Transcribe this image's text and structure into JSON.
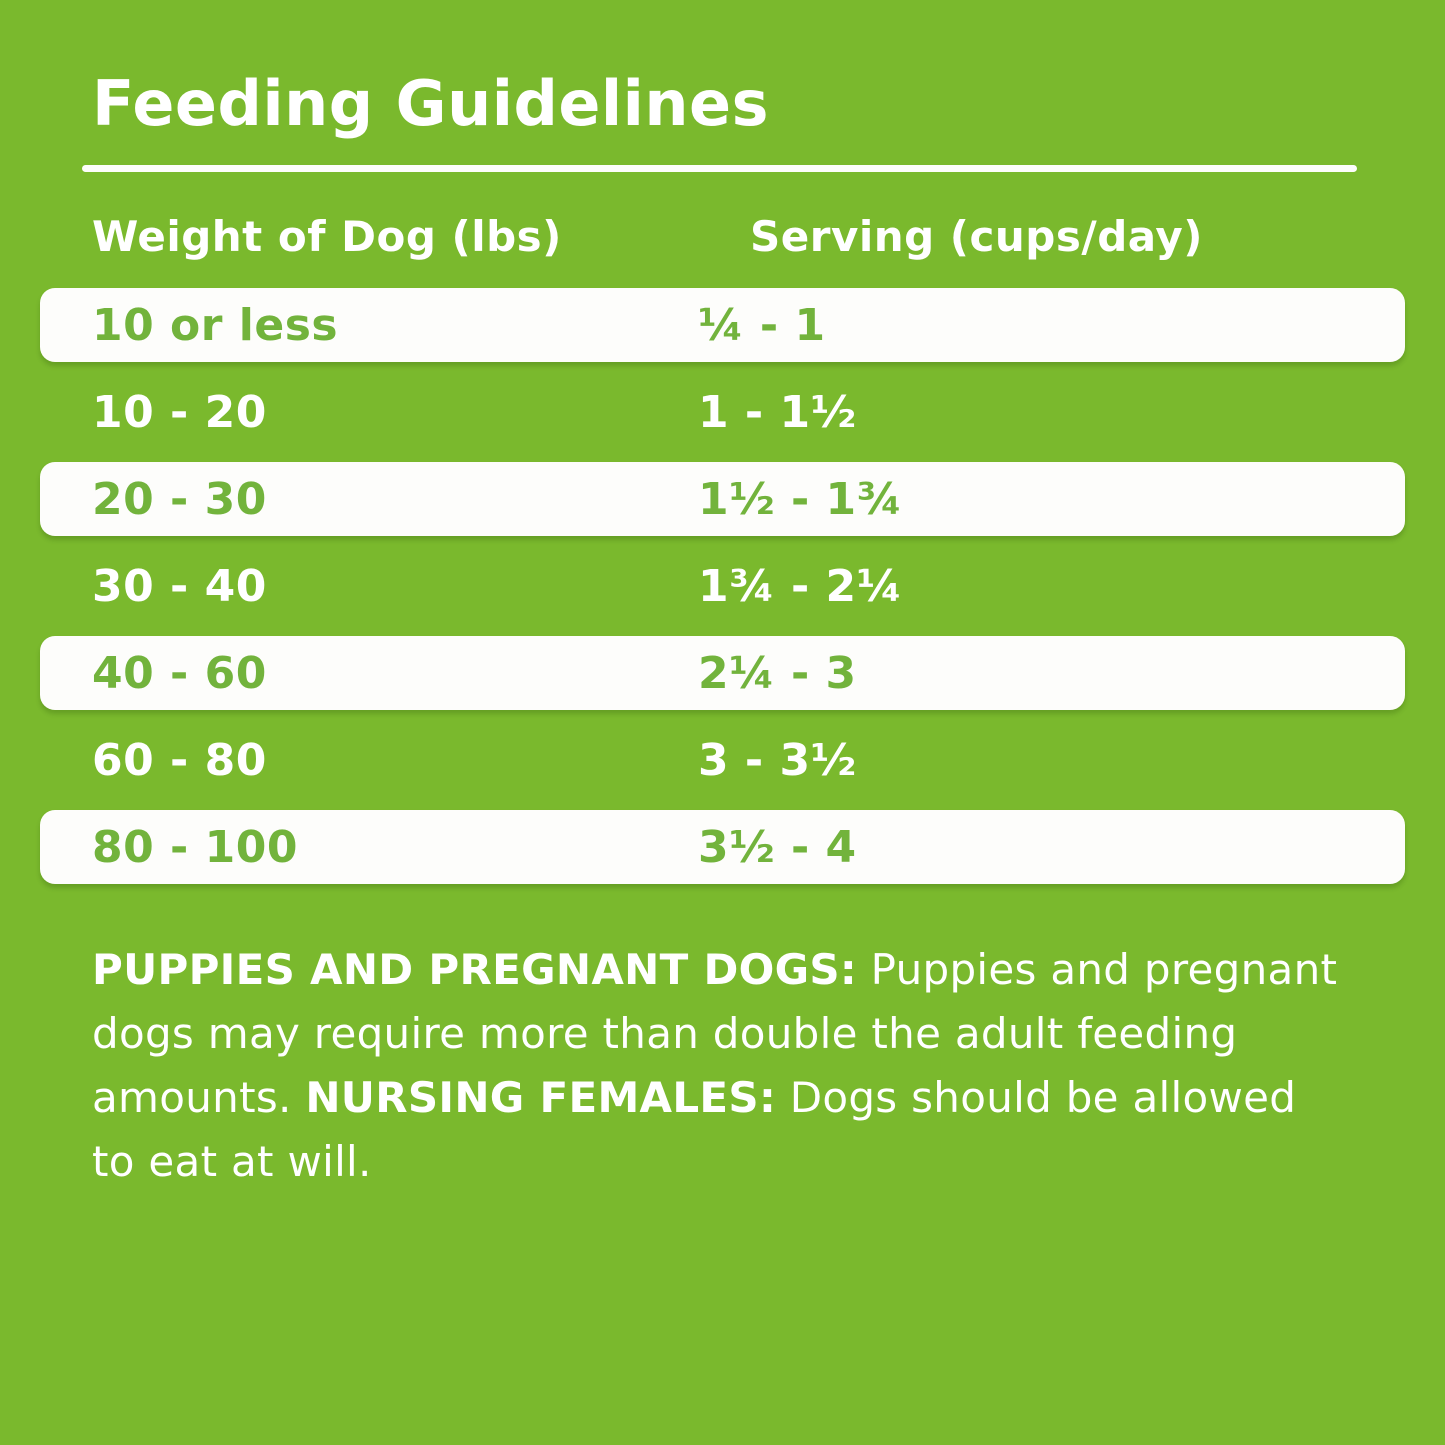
{
  "colors": {
    "background_green": "#7ab92d",
    "row_highlight_white": "#fdfdfb",
    "green_text_on_white": "#72b33c",
    "white_text": "#ffffff"
  },
  "title": "Feeding Guidelines",
  "table": {
    "column_headers": [
      "Weight of Dog (lbs)",
      "Serving (cups/day)"
    ],
    "rows": [
      {
        "weight": "10 or less",
        "serving": "¼ - 1"
      },
      {
        "weight": "10 - 20",
        "serving": "1 - 1½"
      },
      {
        "weight": "20 - 30",
        "serving": "1½ - 1¾"
      },
      {
        "weight": "30 - 40",
        "serving": "1¾ - 2¼"
      },
      {
        "weight": "40 - 60",
        "serving": "2¼ - 3"
      },
      {
        "weight": "60 - 80",
        "serving": "3 - 3½"
      },
      {
        "weight": "80 - 100",
        "serving": "3½ - 4"
      }
    ]
  },
  "footer": {
    "lines": [
      {
        "segments": [
          {
            "text": "PUPPIES AND PREGNANT DOGS:",
            "bold": true
          },
          {
            "text": " Puppies and pregnant",
            "bold": false
          }
        ]
      },
      {
        "segments": [
          {
            "text": "dogs may require more than double the adult feeding",
            "bold": false
          }
        ]
      },
      {
        "segments": [
          {
            "text": "amounts. ",
            "bold": false
          },
          {
            "text": "NURSING FEMALES:",
            "bold": true
          },
          {
            "text": " Dogs should be allowed",
            "bold": false
          }
        ]
      },
      {
        "segments": [
          {
            "text": "to eat at will.",
            "bold": false
          }
        ]
      }
    ]
  }
}
